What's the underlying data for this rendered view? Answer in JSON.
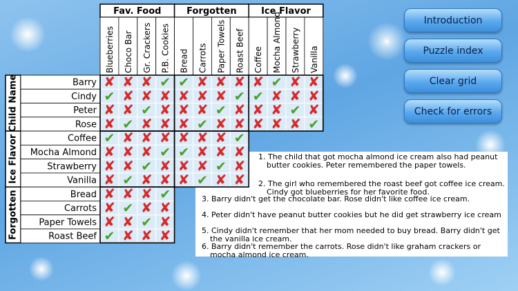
{
  "grid": {
    "column_groups": [
      "Fav. Food",
      "Forgotten",
      "Ice Flavor"
    ],
    "columns": [
      "Blueberries",
      "Choco Bar",
      "Gr. Crackers",
      "P.B. Cookies",
      "Bread",
      "Carrots",
      "Paper Towels",
      "Roast Beef",
      "Coffee",
      "Mocha Almond",
      "Strawberry",
      "Vanilla"
    ],
    "row_groups": [
      "Child Name",
      "Ice Flavor",
      "Forgotten"
    ],
    "rows": [
      {
        "label": "Barry",
        "cells": [
          "✘",
          "✘",
          "✘",
          "✔",
          "✔",
          "✘",
          "✘",
          "✘",
          "✘",
          "✔",
          "✘",
          "✘"
        ]
      },
      {
        "label": "Cindy",
        "cells": [
          "✔",
          "✘",
          "✘",
          "✘",
          "✘",
          "✘",
          "✘",
          "✔",
          "✔",
          "✘",
          "✘",
          "✘"
        ]
      },
      {
        "label": "Peter",
        "cells": [
          "✘",
          "✘",
          "✔",
          "✘",
          "✘",
          "✘",
          "✔",
          "✘",
          "✘",
          "✘",
          "✔",
          "✘"
        ]
      },
      {
        "label": "Rose",
        "cells": [
          "✘",
          "✔",
          "✘",
          "✘",
          "✘",
          "✔",
          "✘",
          "✘",
          "✘",
          "✘",
          "✘",
          "✔"
        ]
      },
      {
        "label": "Coffee",
        "cells": [
          "✔",
          "✘",
          "✘",
          "✘",
          "✘",
          "✘",
          "✘",
          "✔"
        ]
      },
      {
        "label": "Mocha Almond",
        "cells": [
          "✘",
          "✘",
          "✘",
          "✔",
          "✔",
          "✘",
          "✘",
          "✘"
        ]
      },
      {
        "label": "Strawberry",
        "cells": [
          "✘",
          "✘",
          "✔",
          "✘",
          "✘",
          "✘",
          "✔",
          "✘"
        ]
      },
      {
        "label": "Vanilla",
        "cells": [
          "✘",
          "✔",
          "✘",
          "✘",
          "✘",
          "✔",
          "✘",
          "✘"
        ]
      },
      {
        "label": "Bread",
        "cells": [
          "✘",
          "✘",
          "✘",
          "✔"
        ]
      },
      {
        "label": "Carrots",
        "cells": [
          "✘",
          "✔",
          "✘",
          "✘"
        ]
      },
      {
        "label": "Paper Towels",
        "cells": [
          "✘",
          "✘",
          "✔",
          "✘"
        ]
      },
      {
        "label": "Roast Beef",
        "cells": [
          "✔",
          "✘",
          "✘",
          "✘"
        ]
      }
    ]
  },
  "clues": [
    "1. The child that got mocha almond ice cream also had peanut butter cookies. Peter remembered the paper towels.",
    "2. The girl who remembered the roast beef got coffee ice cream. Cindy got blueberries for her favorite food.",
    "3. Barry didn't get the chocolate bar. Rose didn't like coffee ice cream.",
    "4. Peter didn't have peanut butter cookies but he did get strawberry ice cream",
    "5. Cindy didn't remember that her mom needed to buy bread. Barry didn't get the vanilla ice cream.",
    "6. Barry didn't remember the carrots. Rose didn't like graham crackers or mocha almond ice cream."
  ],
  "buttons": [
    "Introduction",
    "Puzzle index",
    "Clear grid",
    "Check for errors"
  ]
}
